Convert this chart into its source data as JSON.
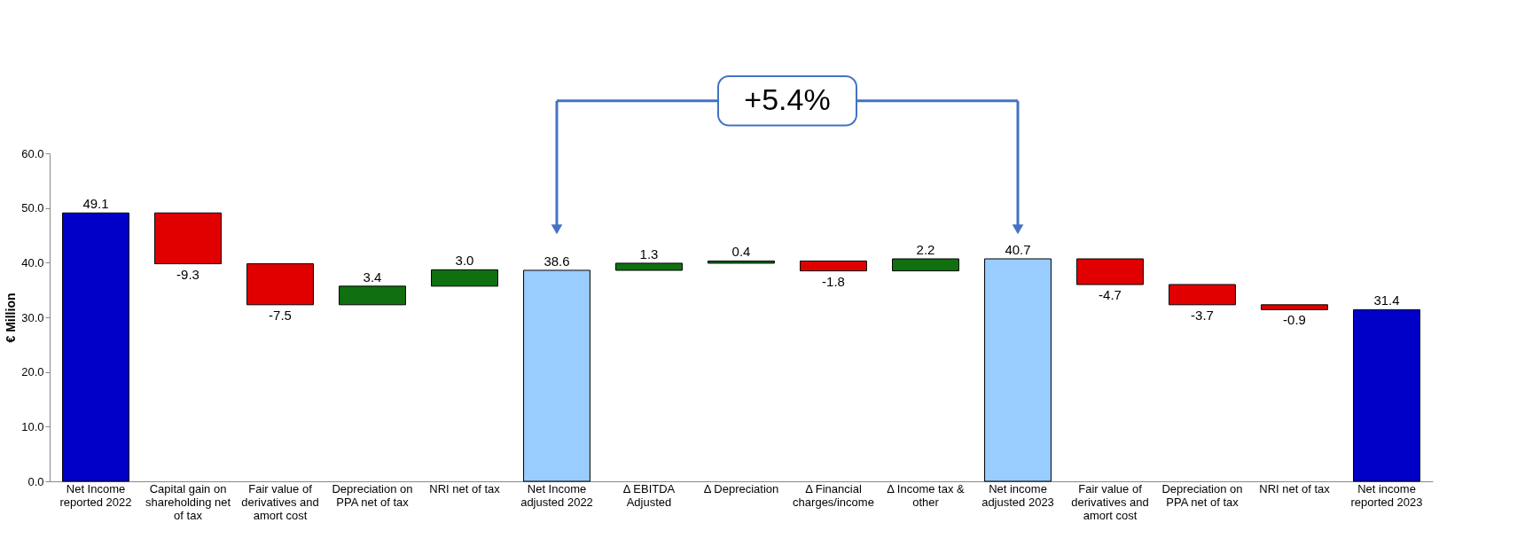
{
  "chart_data": {
    "type": "bar",
    "ylabel": "€ Million",
    "categories": [
      "Net Income reported 2022",
      "Capital gain on shareholding net of tax",
      "Fair value of derivatives and amort cost",
      "Depreciation on PPA net of tax",
      "NRI net of tax",
      "Net Income adjusted 2022",
      "Δ EBITDA Adjusted",
      "Δ Depreciation",
      "Δ Financial charges/income",
      "Δ Income tax & other",
      "Net income adjusted 2023",
      "Fair value of derivatives and amort cost",
      "Depreciation on PPA net of tax",
      "NRI net of tax",
      "Net income reported 2023"
    ],
    "values": [
      49.1,
      -9.3,
      -7.5,
      3.4,
      3.0,
      38.6,
      1.3,
      0.4,
      -1.8,
      2.2,
      40.7,
      -4.7,
      -3.7,
      -0.9,
      31.4
    ],
    "base": [
      0,
      49.1,
      39.8,
      32.3,
      35.7,
      0,
      38.6,
      39.9,
      40.3,
      38.5,
      0,
      40.7,
      36.0,
      32.3,
      0
    ],
    "colors": [
      "#0000c8",
      "#e00000",
      "#e00000",
      "#107010",
      "#107010",
      "#99ccff",
      "#107010",
      "#107010",
      "#e00000",
      "#107010",
      "#99ccff",
      "#e00000",
      "#e00000",
      "#e00000",
      "#0000c8"
    ],
    "value_labels": [
      "49.1",
      "-9.3",
      "-7.5",
      "3.4",
      "3.0",
      "38.6",
      "1.3",
      "0.4",
      "-1.8",
      "2.2",
      "40.7",
      "-4.7",
      "-3.7",
      "-0.9",
      "31.4"
    ],
    "ylim": [
      0,
      60
    ],
    "yticks": [
      {
        "value": 0,
        "label": "0.0"
      },
      {
        "value": 10,
        "label": "10.0"
      },
      {
        "value": 20,
        "label": "20.0"
      },
      {
        "value": 30,
        "label": "30.0"
      },
      {
        "value": 40,
        "label": "40.0"
      },
      {
        "value": 50,
        "label": "50.0"
      },
      {
        "value": 60,
        "label": "60.0"
      }
    ],
    "grid": false,
    "annotations": [
      "+5.4%"
    ]
  }
}
